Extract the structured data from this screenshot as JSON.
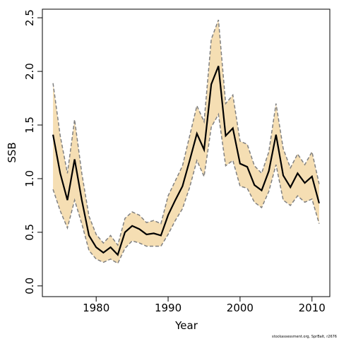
{
  "chart_data": {
    "type": "line",
    "x_label": "Year",
    "y_label": "SSB",
    "credit": "stockassessment.org, SprBalt, r2676",
    "x": [
      1974,
      1975,
      1976,
      1977,
      1978,
      1979,
      1980,
      1981,
      1982,
      1983,
      1984,
      1985,
      1986,
      1987,
      1988,
      1989,
      1990,
      1991,
      1992,
      1993,
      1994,
      1995,
      1996,
      1997,
      1998,
      1999,
      2000,
      2001,
      2002,
      2003,
      2004,
      2005,
      2006,
      2007,
      2008,
      2009,
      2010,
      2011
    ],
    "series": [
      {
        "color": "#000000",
        "values": [
          1.41,
          1.05,
          0.8,
          1.18,
          0.8,
          0.47,
          0.36,
          0.31,
          0.36,
          0.29,
          0.5,
          0.56,
          0.53,
          0.48,
          0.49,
          0.47,
          0.66,
          0.8,
          0.93,
          1.17,
          1.42,
          1.27,
          1.88,
          2.05,
          1.4,
          1.47,
          1.14,
          1.11,
          0.94,
          0.89,
          1.07,
          1.41,
          1.03,
          0.92,
          1.05,
          0.96,
          1.02,
          0.77
        ]
      }
    ],
    "band": {
      "color": "#f5deb3",
      "edge_color": "#808080",
      "upper": [
        1.89,
        1.4,
        1.05,
        1.55,
        1.05,
        0.65,
        0.48,
        0.4,
        0.47,
        0.38,
        0.63,
        0.69,
        0.66,
        0.59,
        0.61,
        0.58,
        0.84,
        0.98,
        1.12,
        1.4,
        1.68,
        1.53,
        2.3,
        2.48,
        1.7,
        1.78,
        1.35,
        1.32,
        1.12,
        1.05,
        1.25,
        1.7,
        1.28,
        1.1,
        1.23,
        1.13,
        1.25,
        0.95
      ],
      "lower": [
        0.9,
        0.7,
        0.54,
        0.8,
        0.58,
        0.33,
        0.25,
        0.22,
        0.25,
        0.21,
        0.35,
        0.42,
        0.4,
        0.37,
        0.37,
        0.37,
        0.48,
        0.61,
        0.72,
        0.92,
        1.17,
        1.02,
        1.48,
        1.6,
        1.12,
        1.17,
        0.93,
        0.91,
        0.78,
        0.73,
        0.88,
        1.13,
        0.8,
        0.75,
        0.84,
        0.78,
        0.81,
        0.58
      ]
    },
    "xlim": [
      1972.52,
      2012.48
    ],
    "ylim": [
      -0.1,
      2.58
    ],
    "xticks": [
      1980,
      1990,
      2000,
      2010
    ],
    "yticks": [
      {
        "value": 0,
        "label": "0.0"
      },
      0.5,
      {
        "value": 1,
        "label": "1.0"
      },
      1.5,
      {
        "value": 2,
        "label": "2.0"
      },
      2.5
    ]
  }
}
